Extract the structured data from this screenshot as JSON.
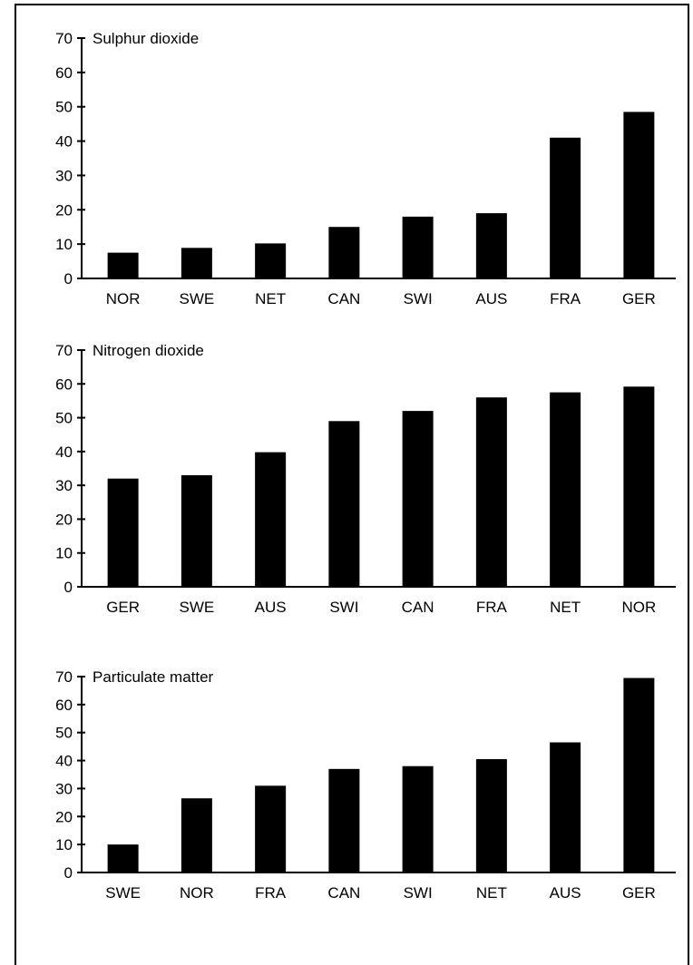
{
  "chart_data": [
    {
      "type": "bar",
      "title": "Sulphur dioxide",
      "categories": [
        "NOR",
        "SWE",
        "NET",
        "CAN",
        "SWI",
        "AUS",
        "FRA",
        "GER"
      ],
      "values": [
        7.5,
        8.9,
        10.2,
        15,
        18,
        19,
        41,
        48.5
      ],
      "ylim": [
        0,
        70
      ],
      "yticks": [
        "0",
        "10",
        "20",
        "30",
        "40",
        "50",
        "60",
        "70"
      ],
      "bar_color": "#000000",
      "grid": false
    },
    {
      "type": "bar",
      "title": "Nitrogen dioxide",
      "categories": [
        "GER",
        "SWE",
        "AUS",
        "SWI",
        "CAN",
        "FRA",
        "NET",
        "NOR"
      ],
      "values": [
        32,
        33,
        39.8,
        49,
        52,
        56,
        57.5,
        59.2
      ],
      "ylim": [
        0,
        70
      ],
      "yticks": [
        "0",
        "10",
        "20",
        "30",
        "40",
        "50",
        "60",
        "70"
      ],
      "bar_color": "#000000",
      "grid": false
    },
    {
      "type": "bar",
      "title": "Particulate matter",
      "categories": [
        "SWE",
        "NOR",
        "FRA",
        "CAN",
        "SWI",
        "NET",
        "AUS",
        "GER"
      ],
      "values": [
        10,
        26.5,
        31,
        37,
        38,
        40.5,
        46.5,
        69.5
      ],
      "ylim": [
        0,
        70
      ],
      "yticks": [
        "0",
        "10",
        "20",
        "30",
        "40",
        "50",
        "60",
        "70"
      ],
      "bar_color": "#000000",
      "grid": false
    }
  ]
}
